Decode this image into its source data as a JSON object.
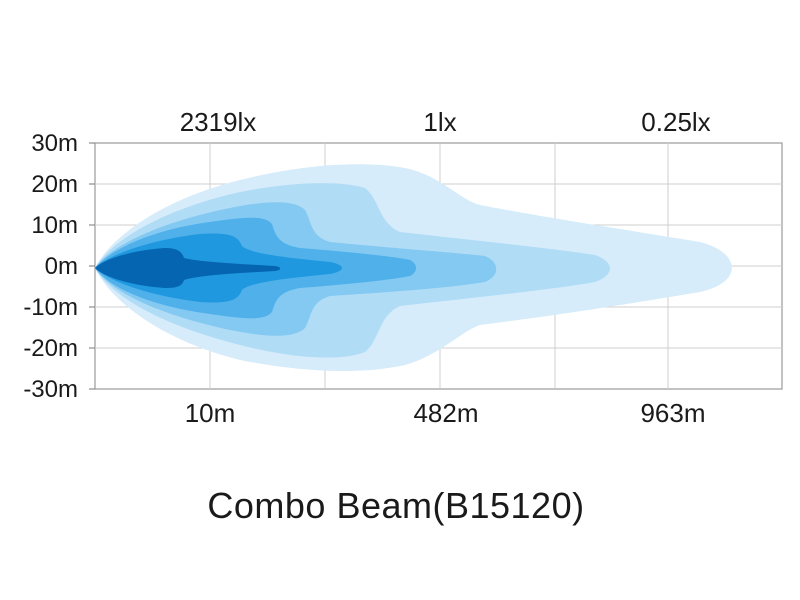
{
  "chart_data": {
    "type": "area",
    "title": "Combo Beam(B15120)",
    "xlabel": "",
    "ylabel": "",
    "y_ticks": [
      "30m",
      "20m",
      "10m",
      "0m",
      "-10m",
      "-20m",
      "-30m"
    ],
    "y_values": [
      30,
      20,
      10,
      0,
      -10,
      -20,
      -30
    ],
    "ylim": [
      -30,
      30
    ],
    "lux_labels": [
      "2319lx",
      "1lx",
      "0.25lx"
    ],
    "distance_labels": [
      "10m",
      "482m",
      "963m"
    ],
    "grid": true,
    "series_colors": [
      "#d6ecfa",
      "#b1dcf6",
      "#84c9f1",
      "#4fb0ea",
      "#1f98e0",
      "#0a82d2",
      "#0565b1"
    ]
  }
}
